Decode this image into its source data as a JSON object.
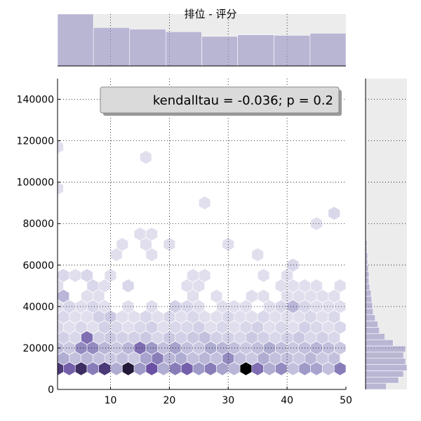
{
  "chart_data": {
    "type": "hexbin",
    "title": "排位 - 评分",
    "annotation": "kendalltau = -0.036; p = 0.2",
    "xlim": [
      1,
      50
    ],
    "ylim": [
      0,
      150000
    ],
    "x_ticks": [
      10,
      20,
      30,
      40,
      50
    ],
    "y_ticks": [
      0,
      20000,
      40000,
      60000,
      80000,
      100000,
      120000,
      140000
    ],
    "grid": true,
    "colormap": "Purples",
    "x_marginal_histogram": {
      "bin_edges": [
        1,
        7.1,
        13.25,
        19.4,
        25.5,
        31.6,
        37.8,
        43.9,
        50
      ],
      "counts": [
        100,
        74,
        71,
        66,
        57,
        60,
        59,
        63
      ]
    },
    "y_marginal_histogram": {
      "bin_edges": [
        0,
        3000,
        6000,
        9000,
        12000,
        15000,
        18000,
        21000,
        24000,
        27000,
        30000,
        33000,
        36000,
        39000,
        42000,
        45000,
        48000,
        51000,
        54000,
        57000,
        60000,
        63000,
        66000,
        69000,
        72000,
        75000,
        78000,
        81000,
        84000,
        87000,
        90000,
        93000,
        96000,
        99000,
        102000,
        105000,
        108000,
        111000,
        114000,
        117000,
        120000
      ],
      "counts": [
        30,
        48,
        55,
        60,
        58,
        55,
        58,
        40,
        28,
        20,
        18,
        14,
        11,
        10,
        9,
        8,
        6,
        5,
        5,
        4,
        3,
        3,
        2,
        2,
        1,
        1,
        1,
        1,
        1,
        0,
        0,
        0,
        0,
        1,
        0,
        0,
        0,
        0,
        0,
        1
      ]
    },
    "hexbins": [
      {
        "x": 1,
        "y": 10000,
        "v": 0.85
      },
      {
        "x": 3,
        "y": 10000,
        "v": 0.7
      },
      {
        "x": 5,
        "y": 10000,
        "v": 0.9
      },
      {
        "x": 7,
        "y": 10000,
        "v": 0.6
      },
      {
        "x": 9,
        "y": 10000,
        "v": 0.85
      },
      {
        "x": 11,
        "y": 10000,
        "v": 0.4
      },
      {
        "x": 13,
        "y": 10000,
        "v": 0.95
      },
      {
        "x": 15,
        "y": 10000,
        "v": 0.5
      },
      {
        "x": 17,
        "y": 10000,
        "v": 0.75
      },
      {
        "x": 19,
        "y": 10000,
        "v": 0.4
      },
      {
        "x": 21,
        "y": 10000,
        "v": 0.6
      },
      {
        "x": 23,
        "y": 10000,
        "v": 0.7
      },
      {
        "x": 25,
        "y": 10000,
        "v": 0.5
      },
      {
        "x": 27,
        "y": 10000,
        "v": 0.6
      },
      {
        "x": 29,
        "y": 10000,
        "v": 0.45
      },
      {
        "x": 31,
        "y": 10000,
        "v": 0.35
      },
      {
        "x": 33,
        "y": 10000,
        "v": 1.0
      },
      {
        "x": 35,
        "y": 10000,
        "v": 0.65
      },
      {
        "x": 37,
        "y": 10000,
        "v": 0.4
      },
      {
        "x": 39,
        "y": 10000,
        "v": 0.55
      },
      {
        "x": 41,
        "y": 10000,
        "v": 0.3
      },
      {
        "x": 43,
        "y": 10000,
        "v": 0.5
      },
      {
        "x": 45,
        "y": 10000,
        "v": 0.45
      },
      {
        "x": 47,
        "y": 10000,
        "v": 0.3
      },
      {
        "x": 49,
        "y": 10000,
        "v": 0.6
      },
      {
        "x": 2,
        "y": 15000,
        "v": 0.4
      },
      {
        "x": 4,
        "y": 15000,
        "v": 0.3
      },
      {
        "x": 6,
        "y": 15000,
        "v": 0.35
      },
      {
        "x": 8,
        "y": 15000,
        "v": 0.3
      },
      {
        "x": 10,
        "y": 15000,
        "v": 0.25
      },
      {
        "x": 12,
        "y": 15000,
        "v": 0.3
      },
      {
        "x": 14,
        "y": 15000,
        "v": 0.25
      },
      {
        "x": 16,
        "y": 15000,
        "v": 0.45
      },
      {
        "x": 18,
        "y": 15000,
        "v": 0.6
      },
      {
        "x": 20,
        "y": 15000,
        "v": 0.35
      },
      {
        "x": 22,
        "y": 15000,
        "v": 0.4
      },
      {
        "x": 24,
        "y": 15000,
        "v": 0.3
      },
      {
        "x": 26,
        "y": 15000,
        "v": 0.35
      },
      {
        "x": 28,
        "y": 15000,
        "v": 0.3
      },
      {
        "x": 30,
        "y": 15000,
        "v": 0.55
      },
      {
        "x": 32,
        "y": 15000,
        "v": 0.3
      },
      {
        "x": 34,
        "y": 15000,
        "v": 0.25
      },
      {
        "x": 36,
        "y": 15000,
        "v": 0.4
      },
      {
        "x": 38,
        "y": 15000,
        "v": 0.3
      },
      {
        "x": 40,
        "y": 15000,
        "v": 0.3
      },
      {
        "x": 42,
        "y": 15000,
        "v": 0.25
      },
      {
        "x": 44,
        "y": 15000,
        "v": 0.35
      },
      {
        "x": 46,
        "y": 15000,
        "v": 0.25
      },
      {
        "x": 48,
        "y": 15000,
        "v": 0.3
      },
      {
        "x": 1,
        "y": 20000,
        "v": 0.3
      },
      {
        "x": 3,
        "y": 20000,
        "v": 0.25
      },
      {
        "x": 5,
        "y": 20000,
        "v": 0.55
      },
      {
        "x": 7,
        "y": 20000,
        "v": 0.55
      },
      {
        "x": 9,
        "y": 20000,
        "v": 0.35
      },
      {
        "x": 11,
        "y": 20000,
        "v": 0.25
      },
      {
        "x": 13,
        "y": 20000,
        "v": 0.35
      },
      {
        "x": 15,
        "y": 20000,
        "v": 0.65
      },
      {
        "x": 17,
        "y": 20000,
        "v": 0.5
      },
      {
        "x": 19,
        "y": 20000,
        "v": 0.3
      },
      {
        "x": 21,
        "y": 20000,
        "v": 0.45
      },
      {
        "x": 23,
        "y": 20000,
        "v": 0.3
      },
      {
        "x": 25,
        "y": 20000,
        "v": 0.25
      },
      {
        "x": 27,
        "y": 20000,
        "v": 0.4
      },
      {
        "x": 29,
        "y": 20000,
        "v": 0.35
      },
      {
        "x": 31,
        "y": 20000,
        "v": 0.3
      },
      {
        "x": 33,
        "y": 20000,
        "v": 0.25
      },
      {
        "x": 35,
        "y": 20000,
        "v": 0.3
      },
      {
        "x": 37,
        "y": 20000,
        "v": 0.4
      },
      {
        "x": 39,
        "y": 20000,
        "v": 0.3
      },
      {
        "x": 41,
        "y": 20000,
        "v": 0.25
      },
      {
        "x": 43,
        "y": 20000,
        "v": 0.3
      },
      {
        "x": 45,
        "y": 20000,
        "v": 0.35
      },
      {
        "x": 47,
        "y": 20000,
        "v": 0.3
      },
      {
        "x": 49,
        "y": 20000,
        "v": 0.25
      },
      {
        "x": 2,
        "y": 25000,
        "v": 0.2
      },
      {
        "x": 4,
        "y": 25000,
        "v": 0.15
      },
      {
        "x": 6,
        "y": 25000,
        "v": 0.65
      },
      {
        "x": 8,
        "y": 25000,
        "v": 0.2
      },
      {
        "x": 10,
        "y": 25000,
        "v": 0.25
      },
      {
        "x": 12,
        "y": 25000,
        "v": 0.2
      },
      {
        "x": 14,
        "y": 25000,
        "v": 0.2
      },
      {
        "x": 16,
        "y": 25000,
        "v": 0.25
      },
      {
        "x": 18,
        "y": 25000,
        "v": 0.15
      },
      {
        "x": 20,
        "y": 25000,
        "v": 0.25
      },
      {
        "x": 22,
        "y": 25000,
        "v": 0.2
      },
      {
        "x": 24,
        "y": 25000,
        "v": 0.25
      },
      {
        "x": 26,
        "y": 25000,
        "v": 0.3
      },
      {
        "x": 28,
        "y": 25000,
        "v": 0.2
      },
      {
        "x": 30,
        "y": 25000,
        "v": 0.2
      },
      {
        "x": 32,
        "y": 25000,
        "v": 0.15
      },
      {
        "x": 34,
        "y": 25000,
        "v": 0.25
      },
      {
        "x": 36,
        "y": 25000,
        "v": 0.2
      },
      {
        "x": 38,
        "y": 25000,
        "v": 0.15
      },
      {
        "x": 40,
        "y": 25000,
        "v": 0.2
      },
      {
        "x": 42,
        "y": 25000,
        "v": 0.25
      },
      {
        "x": 44,
        "y": 25000,
        "v": 0.15
      },
      {
        "x": 46,
        "y": 25000,
        "v": 0.2
      },
      {
        "x": 48,
        "y": 25000,
        "v": 0.15
      },
      {
        "x": 1,
        "y": 30000,
        "v": 0.15
      },
      {
        "x": 3,
        "y": 30000,
        "v": 0.1
      },
      {
        "x": 5,
        "y": 30000,
        "v": 0.15
      },
      {
        "x": 7,
        "y": 30000,
        "v": 0.1
      },
      {
        "x": 9,
        "y": 30000,
        "v": 0.2
      },
      {
        "x": 11,
        "y": 30000,
        "v": 0.15
      },
      {
        "x": 13,
        "y": 30000,
        "v": 0.1
      },
      {
        "x": 15,
        "y": 30000,
        "v": 0.15
      },
      {
        "x": 17,
        "y": 30000,
        "v": 0.2
      },
      {
        "x": 19,
        "y": 30000,
        "v": 0.1
      },
      {
        "x": 21,
        "y": 30000,
        "v": 0.15
      },
      {
        "x": 23,
        "y": 30000,
        "v": 0.15
      },
      {
        "x": 25,
        "y": 30000,
        "v": 0.2
      },
      {
        "x": 27,
        "y": 30000,
        "v": 0.1
      },
      {
        "x": 29,
        "y": 30000,
        "v": 0.15
      },
      {
        "x": 31,
        "y": 30000,
        "v": 0.1
      },
      {
        "x": 33,
        "y": 30000,
        "v": 0.15
      },
      {
        "x": 35,
        "y": 30000,
        "v": 0.2
      },
      {
        "x": 37,
        "y": 30000,
        "v": 0.1
      },
      {
        "x": 39,
        "y": 30000,
        "v": 0.15
      },
      {
        "x": 41,
        "y": 30000,
        "v": 0.1
      },
      {
        "x": 43,
        "y": 30000,
        "v": 0.2
      },
      {
        "x": 45,
        "y": 30000,
        "v": 0.15
      },
      {
        "x": 47,
        "y": 30000,
        "v": 0.1
      },
      {
        "x": 49,
        "y": 30000,
        "v": 0.15
      },
      {
        "x": 2,
        "y": 35000,
        "v": 0.15
      },
      {
        "x": 4,
        "y": 35000,
        "v": 0.1
      },
      {
        "x": 6,
        "y": 35000,
        "v": 0.1
      },
      {
        "x": 8,
        "y": 35000,
        "v": 0.2
      },
      {
        "x": 10,
        "y": 35000,
        "v": 0.25
      },
      {
        "x": 12,
        "y": 35000,
        "v": 0.1
      },
      {
        "x": 14,
        "y": 35000,
        "v": 0.1
      },
      {
        "x": 16,
        "y": 35000,
        "v": 0.15
      },
      {
        "x": 18,
        "y": 35000,
        "v": 0.1
      },
      {
        "x": 20,
        "y": 35000,
        "v": 0.15
      },
      {
        "x": 22,
        "y": 35000,
        "v": 0.1
      },
      {
        "x": 24,
        "y": 35000,
        "v": 0.15
      },
      {
        "x": 26,
        "y": 35000,
        "v": 0.1
      },
      {
        "x": 28,
        "y": 35000,
        "v": 0.1
      },
      {
        "x": 30,
        "y": 35000,
        "v": 0.15
      },
      {
        "x": 32,
        "y": 35000,
        "v": 0.1
      },
      {
        "x": 34,
        "y": 35000,
        "v": 0.1
      },
      {
        "x": 36,
        "y": 35000,
        "v": 0.15
      },
      {
        "x": 38,
        "y": 35000,
        "v": 0.1
      },
      {
        "x": 40,
        "y": 35000,
        "v": 0.1
      },
      {
        "x": 42,
        "y": 35000,
        "v": 0.1
      },
      {
        "x": 44,
        "y": 35000,
        "v": 0.15
      },
      {
        "x": 46,
        "y": 35000,
        "v": 0.1
      },
      {
        "x": 48,
        "y": 35000,
        "v": 0.15
      },
      {
        "x": 1,
        "y": 40000,
        "v": 0.1
      },
      {
        "x": 3,
        "y": 40000,
        "v": 0.15
      },
      {
        "x": 5,
        "y": 40000,
        "v": 0.1
      },
      {
        "x": 7,
        "y": 40000,
        "v": 0.15
      },
      {
        "x": 9,
        "y": 40000,
        "v": 0.1
      },
      {
        "x": 13,
        "y": 40000,
        "v": 0.1
      },
      {
        "x": 17,
        "y": 40000,
        "v": 0.1
      },
      {
        "x": 21,
        "y": 40000,
        "v": 0.2
      },
      {
        "x": 23,
        "y": 40000,
        "v": 0.15
      },
      {
        "x": 25,
        "y": 40000,
        "v": 0.1
      },
      {
        "x": 29,
        "y": 40000,
        "v": 0.1
      },
      {
        "x": 31,
        "y": 40000,
        "v": 0.1
      },
      {
        "x": 33,
        "y": 40000,
        "v": 0.1
      },
      {
        "x": 37,
        "y": 40000,
        "v": 0.1
      },
      {
        "x": 39,
        "y": 40000,
        "v": 0.15
      },
      {
        "x": 41,
        "y": 40000,
        "v": 0.35
      },
      {
        "x": 43,
        "y": 40000,
        "v": 0.15
      },
      {
        "x": 45,
        "y": 40000,
        "v": 0.1
      },
      {
        "x": 47,
        "y": 40000,
        "v": 0.1
      },
      {
        "x": 49,
        "y": 40000,
        "v": 0.1
      },
      {
        "x": 2,
        "y": 45000,
        "v": 0.35
      },
      {
        "x": 6,
        "y": 45000,
        "v": 0.1
      },
      {
        "x": 8,
        "y": 45000,
        "v": 0.1
      },
      {
        "x": 24,
        "y": 45000,
        "v": 0.1
      },
      {
        "x": 28,
        "y": 45000,
        "v": 0.1
      },
      {
        "x": 34,
        "y": 45000,
        "v": 0.1
      },
      {
        "x": 36,
        "y": 45000,
        "v": 0.1
      },
      {
        "x": 40,
        "y": 45000,
        "v": 0.1
      },
      {
        "x": 42,
        "y": 45000,
        "v": 0.1
      },
      {
        "x": 44,
        "y": 45000,
        "v": 0.1
      },
      {
        "x": 46,
        "y": 45000,
        "v": 0.1
      },
      {
        "x": 48,
        "y": 45000,
        "v": 0.1
      },
      {
        "x": 1,
        "y": 50000,
        "v": 0.1
      },
      {
        "x": 7,
        "y": 50000,
        "v": 0.15
      },
      {
        "x": 9,
        "y": 50000,
        "v": 0.1
      },
      {
        "x": 13,
        "y": 50000,
        "v": 0.15
      },
      {
        "x": 23,
        "y": 50000,
        "v": 0.1
      },
      {
        "x": 25,
        "y": 50000,
        "v": 0.1
      },
      {
        "x": 39,
        "y": 50000,
        "v": 0.1
      },
      {
        "x": 41,
        "y": 50000,
        "v": 0.1
      },
      {
        "x": 43,
        "y": 50000,
        "v": 0.1
      },
      {
        "x": 45,
        "y": 50000,
        "v": 0.1
      },
      {
        "x": 49,
        "y": 50000,
        "v": 0.1
      },
      {
        "x": 2,
        "y": 55000,
        "v": 0.15
      },
      {
        "x": 4,
        "y": 55000,
        "v": 0.1
      },
      {
        "x": 6,
        "y": 55000,
        "v": 0.15
      },
      {
        "x": 10,
        "y": 55000,
        "v": 0.1
      },
      {
        "x": 24,
        "y": 55000,
        "v": 0.1
      },
      {
        "x": 26,
        "y": 55000,
        "v": 0.1
      },
      {
        "x": 36,
        "y": 55000,
        "v": 0.1
      },
      {
        "x": 40,
        "y": 55000,
        "v": 0.1
      },
      {
        "x": 41,
        "y": 60000,
        "v": 0.15
      },
      {
        "x": 11,
        "y": 65000,
        "v": 0.1
      },
      {
        "x": 17,
        "y": 65000,
        "v": 0.1
      },
      {
        "x": 35,
        "y": 65000,
        "v": 0.1
      },
      {
        "x": 12,
        "y": 70000,
        "v": 0.1
      },
      {
        "x": 16,
        "y": 70000,
        "v": 0.1
      },
      {
        "x": 20,
        "y": 70000,
        "v": 0.1
      },
      {
        "x": 30,
        "y": 70000,
        "v": 0.1
      },
      {
        "x": 15,
        "y": 75000,
        "v": 0.1
      },
      {
        "x": 17,
        "y": 75000,
        "v": 0.1
      },
      {
        "x": 45,
        "y": 80000,
        "v": 0.1
      },
      {
        "x": 48,
        "y": 85000,
        "v": 0.15
      },
      {
        "x": 26,
        "y": 90000,
        "v": 0.1
      },
      {
        "x": 1,
        "y": 97000,
        "v": 0.1
      },
      {
        "x": 16,
        "y": 112000,
        "v": 0.1
      },
      {
        "x": 1,
        "y": 117000,
        "v": 0.1
      }
    ]
  }
}
